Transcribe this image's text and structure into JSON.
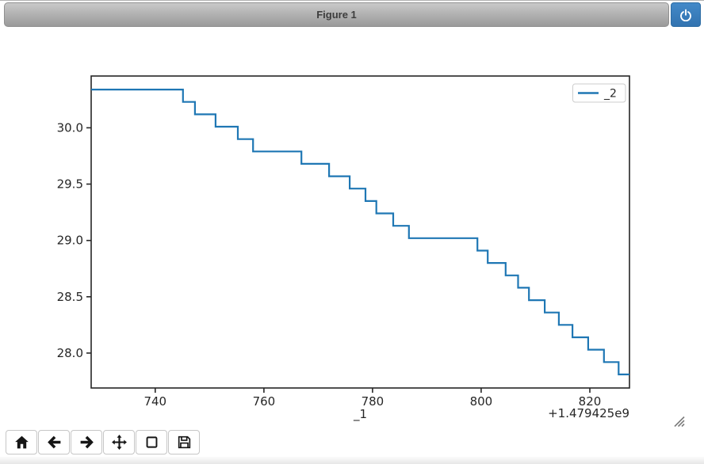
{
  "window": {
    "title": "Figure 1"
  },
  "toolbar": {
    "buttons": [
      {
        "id": "home",
        "icon": "home-icon"
      },
      {
        "id": "back",
        "icon": "arrow-left-icon"
      },
      {
        "id": "forward",
        "icon": "arrow-right-icon"
      },
      {
        "id": "pan",
        "icon": "move-icon"
      },
      {
        "id": "zoom",
        "icon": "zoom-rect-icon"
      },
      {
        "id": "download",
        "icon": "save-icon"
      }
    ]
  },
  "chart_data": {
    "type": "line",
    "drawstyle": "steps-post",
    "title": "",
    "xlabel": "_1",
    "ylabel": "",
    "x_offset_text": "+1.479425e9",
    "xlim": [
      728.2,
      827.3
    ],
    "ylim": [
      27.69,
      30.46
    ],
    "x_ticks": [
      740,
      760,
      780,
      800,
      820
    ],
    "y_ticks": [
      28.0,
      28.5,
      29.0,
      29.5,
      30.0
    ],
    "grid": false,
    "legend": {
      "position": "upper right",
      "entries": [
        "_2"
      ]
    },
    "series": [
      {
        "name": "_2",
        "color": "#1f77b4",
        "x_end": 827.3,
        "steps": [
          [
            728.2,
            30.34
          ],
          [
            745.1,
            30.23
          ],
          [
            747.3,
            30.12
          ],
          [
            751.1,
            30.01
          ],
          [
            755.2,
            29.9
          ],
          [
            758.0,
            29.79
          ],
          [
            766.9,
            29.68
          ],
          [
            772.0,
            29.57
          ],
          [
            775.8,
            29.46
          ],
          [
            778.7,
            29.35
          ],
          [
            780.7,
            29.24
          ],
          [
            783.8,
            29.13
          ],
          [
            786.7,
            29.02
          ],
          [
            799.3,
            28.91
          ],
          [
            801.2,
            28.8
          ],
          [
            804.5,
            28.69
          ],
          [
            806.8,
            28.58
          ],
          [
            808.8,
            28.47
          ],
          [
            811.7,
            28.36
          ],
          [
            814.3,
            28.25
          ],
          [
            816.8,
            28.14
          ],
          [
            819.7,
            28.03
          ],
          [
            822.6,
            27.92
          ],
          [
            825.3,
            27.81
          ]
        ]
      }
    ]
  },
  "colors": {
    "line": "#1f77b4",
    "spine": "#262626",
    "close_button": "#3273b0"
  }
}
